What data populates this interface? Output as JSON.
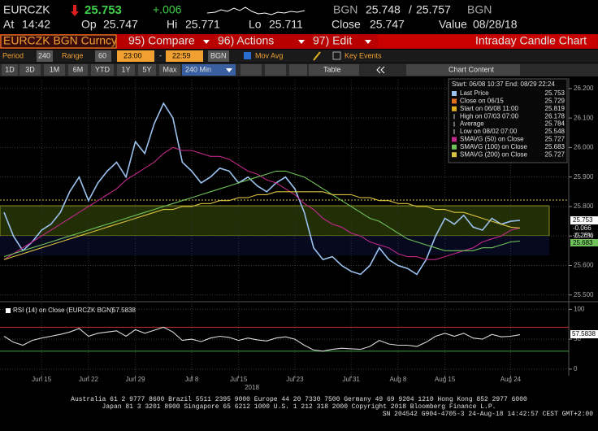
{
  "header": {
    "ticker": "EURCZK",
    "last": "25.753",
    "change": "+.006",
    "bid_src": "BGN",
    "bid": "25.748",
    "sep": "/",
    "ask": "25.757",
    "ask_src": "BGN",
    "at_label": "At",
    "at": "14:42",
    "op_label": "Op",
    "op": "25.747",
    "hi_label": "Hi",
    "hi": "25.771",
    "lo_label": "Lo",
    "lo": "25.711",
    "close_label": "Close",
    "close": "25.747",
    "value_label": "Value",
    "value": "08/28/18"
  },
  "menu": {
    "security": "EURCZK BGN Curncy",
    "compare": "95) Compare",
    "actions": "96) Actions",
    "edit": "97) Edit",
    "title": "Intraday Candle Chart"
  },
  "settings": {
    "period_label": "Period",
    "period": "240",
    "range_label": "Range",
    "range": "60",
    "start": "23:00",
    "dash": "-",
    "end": "22:59",
    "tz": "BGN",
    "mov_avg": "Mov Avg",
    "key_events": "Key Events"
  },
  "toolbar": {
    "ranges": [
      "1D",
      "3D",
      "1M",
      "6M",
      "YTD",
      "1Y",
      "5Y",
      "Max"
    ],
    "interval": "240 Min",
    "table": "Table",
    "chart_content": "Chart Content"
  },
  "legend": {
    "period": "Start: 06/08 10:37 End: 08/29 22:24",
    "stats": [
      {
        "label": "Close on 06/15",
        "value": "25.729",
        "color": "#e07020"
      },
      {
        "label": "Start on 06/08 11:00",
        "value": "25.819",
        "color": "#e0b020"
      },
      {
        "label": "High on 07/03 07:00",
        "value": "26.178"
      },
      {
        "label": "Average",
        "value": "25.784"
      },
      {
        "label": "Low on 08/02 07:00",
        "value": "25.548"
      }
    ]
  },
  "chart_data": [
    {
      "type": "line",
      "categories": [
        null,
        null,
        null,
        null,
        "Jun 15",
        null,
        null,
        null,
        null,
        "Jun 22",
        null,
        null,
        null,
        null,
        "Jun 29",
        null,
        null,
        null,
        null,
        null,
        "Jul 8",
        null,
        null,
        null,
        null,
        "Jul 15",
        null,
        null,
        null,
        null,
        null,
        "Jul 23",
        null,
        null,
        null,
        null,
        null,
        "Jul 31",
        null,
        null,
        null,
        null,
        "Aug 8",
        null,
        null,
        null,
        null,
        "Aug 15",
        null,
        null,
        null,
        null,
        null,
        null,
        "Aug 24",
        null
      ],
      "year_label": "2018",
      "series": [
        {
          "name": "Last Price",
          "color": "#9cc3f0",
          "legend_value": "25.753",
          "values": [
            25.78,
            25.7,
            25.65,
            25.68,
            25.72,
            25.74,
            25.78,
            25.85,
            25.9,
            25.82,
            25.88,
            25.92,
            25.95,
            25.9,
            26.02,
            25.98,
            26.08,
            26.15,
            26.1,
            25.95,
            25.92,
            25.88,
            25.9,
            25.93,
            25.92,
            25.88,
            25.9,
            25.87,
            25.85,
            25.88,
            25.9,
            25.86,
            25.78,
            25.66,
            25.62,
            25.63,
            25.6,
            25.58,
            25.57,
            25.6,
            25.66,
            25.62,
            25.6,
            25.59,
            25.57,
            25.62,
            25.7,
            25.76,
            25.74,
            25.77,
            25.73,
            25.72,
            25.76,
            25.74,
            25.75,
            25.753
          ]
        },
        {
          "name": "SMAVG (50) on Close",
          "color": "#c0288a",
          "legend_value": "25.727",
          "values": [
            25.62,
            25.64,
            25.66,
            25.68,
            25.7,
            25.72,
            25.74,
            25.76,
            25.78,
            25.8,
            25.82,
            25.84,
            25.86,
            25.89,
            25.91,
            25.93,
            25.95,
            25.98,
            26.0,
            25.99,
            25.99,
            25.98,
            25.97,
            25.97,
            25.96,
            25.94,
            25.92,
            25.91,
            25.89,
            25.88,
            25.86,
            25.84,
            25.81,
            25.79,
            25.76,
            25.74,
            25.73,
            25.71,
            25.7,
            25.68,
            25.67,
            25.66,
            25.64,
            25.63,
            25.63,
            25.62,
            25.62,
            25.63,
            25.64,
            25.65,
            25.66,
            25.68,
            25.69,
            25.7,
            25.72,
            25.727
          ]
        },
        {
          "name": "SMAVG (100) on Close",
          "color": "#6fc35a",
          "legend_value": "25.683",
          "values": [
            25.63,
            25.64,
            25.65,
            25.66,
            25.67,
            25.68,
            25.69,
            25.7,
            25.71,
            25.72,
            25.73,
            25.74,
            25.75,
            25.76,
            25.77,
            25.78,
            25.79,
            25.8,
            25.81,
            25.82,
            25.83,
            25.84,
            25.85,
            25.86,
            25.87,
            25.88,
            25.89,
            25.9,
            25.91,
            25.92,
            25.92,
            25.91,
            25.9,
            25.88,
            25.86,
            25.84,
            25.82,
            25.8,
            25.78,
            25.76,
            25.75,
            25.73,
            25.71,
            25.69,
            25.68,
            25.67,
            25.66,
            25.65,
            25.65,
            25.65,
            25.65,
            25.66,
            25.66,
            25.67,
            25.68,
            25.683
          ]
        },
        {
          "name": "SMAVG (200) on Close",
          "color": "#d8c040",
          "legend_value": "25.727",
          "values": [
            25.62,
            25.63,
            25.64,
            25.65,
            25.66,
            25.67,
            25.68,
            25.69,
            25.7,
            25.71,
            25.72,
            25.73,
            25.74,
            25.75,
            25.76,
            25.77,
            25.78,
            25.79,
            25.79,
            25.8,
            25.8,
            25.81,
            25.81,
            25.82,
            25.82,
            25.83,
            25.83,
            25.84,
            25.84,
            25.85,
            25.85,
            25.85,
            25.85,
            25.85,
            25.85,
            25.84,
            25.84,
            25.84,
            25.83,
            25.83,
            25.82,
            25.82,
            25.81,
            25.81,
            25.8,
            25.8,
            25.79,
            25.79,
            25.78,
            25.78,
            25.77,
            25.76,
            25.75,
            25.74,
            25.73,
            25.727
          ]
        }
      ],
      "ylim": [
        25.48,
        26.23
      ],
      "yticks": [
        {
          "value": 25.5,
          "label": "25.500"
        },
        {
          "value": 25.6,
          "label": "25.600"
        },
        {
          "value": 25.7,
          "label": "25.700"
        },
        {
          "value": 25.8,
          "label": "25.800"
        },
        {
          "value": 25.9,
          "label": "25.900"
        },
        {
          "value": 26.0,
          "label": "26.000"
        },
        {
          "value": 26.1,
          "label": "26.100"
        },
        {
          "value": 26.2,
          "label": "26.200"
        }
      ],
      "grid": true,
      "tags": {
        "last": "25.753",
        "change": "-0.066",
        "change_pct": "-0.26%",
        "sma100": "25.683"
      }
    },
    {
      "type": "line",
      "series": [
        {
          "name": "RSI (14) on Close (EURCZK BGN)",
          "color": "#d8d8d8",
          "legend_value": "57.5838",
          "last_label": "57.5838",
          "values": [
            55,
            45,
            40,
            48,
            52,
            55,
            58,
            62,
            68,
            55,
            60,
            62,
            64,
            55,
            66,
            60,
            65,
            70,
            62,
            48,
            50,
            46,
            52,
            55,
            53,
            48,
            52,
            49,
            47,
            52,
            54,
            50,
            40,
            32,
            30,
            33,
            35,
            34,
            33,
            38,
            48,
            42,
            40,
            40,
            38,
            45,
            55,
            60,
            55,
            60,
            52,
            50,
            58,
            54,
            55,
            57.5838
          ]
        }
      ],
      "ylim": [
        -11,
        110
      ],
      "yticks": [
        0,
        50,
        100
      ],
      "levels": [
        {
          "value": 70,
          "color": "#c03030"
        },
        {
          "value": 30,
          "color": "#3fa040"
        }
      ]
    }
  ],
  "footer": {
    "lines": [
      "Australia 61 2 9777 8600 Brazil 5511 2395 9000 Europe 44 20 7330 7500 Germany 49 69 9204 1210 Hong Kong 852 2977 6000",
      "Japan 81 3 3201 8900 Singapore 65 6212 1000 U.S. 1 212 318 2000 Copyright 2018 Bloomberg Finance L.P.",
      "SN 204542 G904-4705-3 24-Aug-18 14:42:57 CEST GMT+2:00"
    ]
  }
}
